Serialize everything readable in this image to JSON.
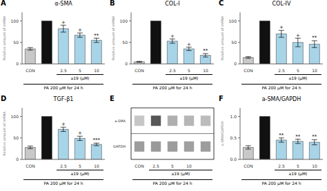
{
  "chart_data": [
    {
      "type": "bar",
      "panel_label": "A",
      "title": "α-SMA",
      "ylabel": "Relative amount of mRNA",
      "categories": [
        "CON",
        null,
        "2.5",
        "5",
        "10"
      ],
      "values": [
        35,
        100,
        82,
        67,
        55
      ],
      "errors": [
        3,
        0,
        8,
        5,
        5
      ],
      "colors": [
        "#c8c8c8",
        "#111111",
        "#a8d4e8",
        "#a8d4e8",
        "#a8d4e8"
      ],
      "ylim": [
        0,
        120
      ],
      "yticks": [
        0,
        50,
        100
      ],
      "significance": [
        null,
        null,
        "+",
        "+",
        "**"
      ],
      "group_label": "a19 (μM)",
      "bottom_label": "PA 200 μM for 24 h"
    },
    {
      "type": "bar",
      "panel_label": "B",
      "title": "COL-I",
      "ylabel": "Relative amount of mRNA",
      "categories": [
        "CON",
        null,
        "2.5",
        "5",
        "10"
      ],
      "values": [
        5,
        100,
        53,
        35,
        20
      ],
      "errors": [
        1,
        0,
        5,
        4,
        4
      ],
      "colors": [
        "#c8c8c8",
        "#111111",
        "#a8d4e8",
        "#a8d4e8",
        "#a8d4e8"
      ],
      "ylim": [
        0,
        120
      ],
      "yticks": [
        0,
        50,
        100
      ],
      "significance": [
        null,
        null,
        "+",
        "+",
        "**"
      ],
      "group_label": "a19 (μM)",
      "bottom_label": "PA 200 μM for 24 h"
    },
    {
      "type": "bar",
      "panel_label": "C",
      "title": "COL-IV",
      "ylabel": "Relative amount of mRNA",
      "categories": [
        "CON",
        null,
        "2.5",
        "5",
        "10"
      ],
      "values": [
        15,
        100,
        70,
        50,
        46
      ],
      "errors": [
        2,
        0,
        8,
        10,
        8
      ],
      "colors": [
        "#c8c8c8",
        "#111111",
        "#a8d4e8",
        "#a8d4e8",
        "#a8d4e8"
      ],
      "ylim": [
        0,
        120
      ],
      "yticks": [
        0,
        50,
        100
      ],
      "significance": [
        null,
        null,
        "+",
        "+",
        "**"
      ],
      "group_label": "a19 (μM)",
      "bottom_label": "PA 200 μM for 24 h"
    },
    {
      "type": "bar",
      "panel_label": "D",
      "title": "TGF-β1",
      "ylabel": "Relative amount of mRNA",
      "categories": [
        "CON",
        null,
        "2.5",
        "5",
        "10"
      ],
      "values": [
        28,
        100,
        70,
        49,
        35
      ],
      "errors": [
        3,
        0,
        5,
        5,
        3
      ],
      "colors": [
        "#c8c8c8",
        "#111111",
        "#a8d4e8",
        "#a8d4e8",
        "#a8d4e8"
      ],
      "ylim": [
        0,
        120
      ],
      "yticks": [
        0,
        50,
        100
      ],
      "significance": [
        null,
        null,
        "+",
        "+",
        "***"
      ],
      "group_label": "a19 (μM)",
      "bottom_label": "PA 200 μM for 24 h"
    },
    {
      "type": "blot",
      "panel_label": "E",
      "categories": [
        "CON",
        "2.5",
        "5",
        "10",
        null
      ],
      "series": [
        {
          "name": "a-SMA",
          "values": [
            0.3,
            0.88,
            0.42,
            0.38,
            0.35
          ]
        },
        {
          "name": "GAPDH",
          "values": [
            0.7,
            0.72,
            0.7,
            0.68,
            0.7
          ]
        }
      ],
      "group_label": "a19 (μM)",
      "bottom_label": "PA 200 μM for 24 h"
    },
    {
      "type": "bar",
      "panel_label": "F",
      "title": "a-SMA/GAPDH",
      "ylabel": "a-SMA/GAPDH",
      "categories": [
        "CON",
        null,
        "2.5",
        "5",
        "10"
      ],
      "values": [
        0.28,
        1.0,
        0.45,
        0.42,
        0.4
      ],
      "errors": [
        0.04,
        0,
        0.05,
        0.05,
        0.06
      ],
      "colors": [
        "#c8c8c8",
        "#111111",
        "#a8d4e8",
        "#a8d4e8",
        "#a8d4e8"
      ],
      "ylim": [
        0,
        1.2
      ],
      "yticks": [
        {
          "value": 0.0,
          "label": "0.0"
        },
        {
          "value": 0.5,
          "label": "0.5"
        },
        {
          "value": 1.0,
          "label": "1.0"
        }
      ],
      "significance": [
        null,
        null,
        "**",
        "**",
        "**"
      ],
      "group_label": "a19 (μM)",
      "bottom_label": "PA 200 μM for 24 h"
    }
  ]
}
